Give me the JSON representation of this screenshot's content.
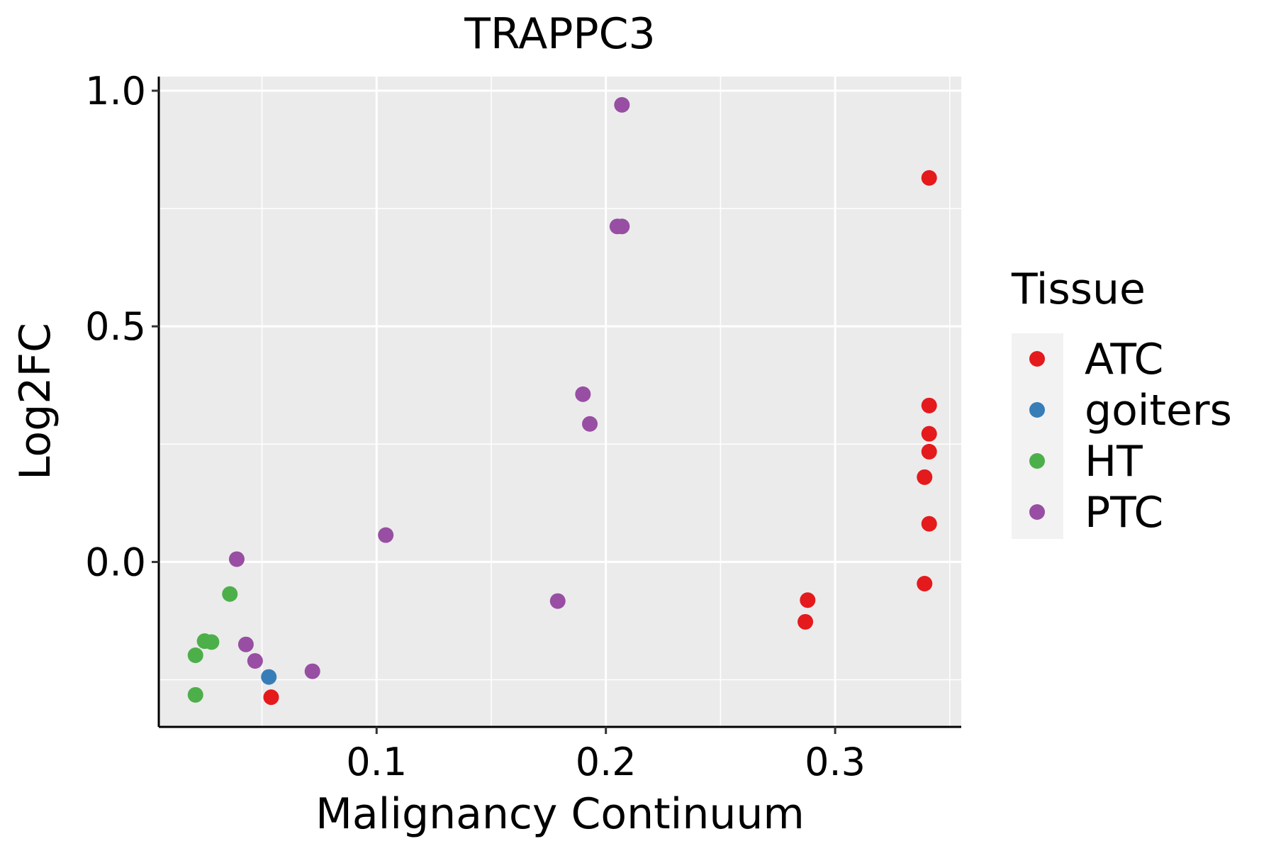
{
  "chart_data": {
    "type": "scatter",
    "title": "TRAPPC3",
    "xlabel": "Malignancy Continuum",
    "ylabel": "Log2FC",
    "xlim": [
      0.005,
      0.355
    ],
    "ylim": [
      -0.35,
      1.03
    ],
    "x_ticks": [
      0.1,
      0.2,
      0.3
    ],
    "x_tick_labels": [
      "0.1",
      "0.2",
      "0.3"
    ],
    "y_ticks": [
      0.0,
      0.5,
      1.0
    ],
    "y_tick_labels": [
      "0.0",
      "0.5",
      "1.0"
    ],
    "grid": true,
    "legend": {
      "title": "Tissue",
      "position": "right",
      "entries": [
        {
          "name": "ATC",
          "color": "#E41A1C"
        },
        {
          "name": "goiters",
          "color": "#377EB8"
        },
        {
          "name": "HT",
          "color": "#4DAF4A"
        },
        {
          "name": "PTC",
          "color": "#984EA3"
        }
      ]
    },
    "series": [
      {
        "name": "ATC",
        "color": "#E41A1C",
        "points": [
          {
            "x": 0.341,
            "y": 0.815
          },
          {
            "x": 0.341,
            "y": 0.332
          },
          {
            "x": 0.341,
            "y": 0.272
          },
          {
            "x": 0.341,
            "y": 0.234
          },
          {
            "x": 0.339,
            "y": 0.18
          },
          {
            "x": 0.341,
            "y": 0.081
          },
          {
            "x": 0.339,
            "y": -0.046
          },
          {
            "x": 0.288,
            "y": -0.081
          },
          {
            "x": 0.287,
            "y": -0.127
          },
          {
            "x": 0.054,
            "y": -0.287
          }
        ]
      },
      {
        "name": "goiters",
        "color": "#377EB8",
        "points": [
          {
            "x": 0.053,
            "y": -0.244
          }
        ]
      },
      {
        "name": "HT",
        "color": "#4DAF4A",
        "points": [
          {
            "x": 0.036,
            "y": -0.068
          },
          {
            "x": 0.025,
            "y": -0.168
          },
          {
            "x": 0.028,
            "y": -0.17
          },
          {
            "x": 0.021,
            "y": -0.198
          },
          {
            "x": 0.021,
            "y": -0.282
          }
        ]
      },
      {
        "name": "PTC",
        "color": "#984EA3",
        "points": [
          {
            "x": 0.207,
            "y": 0.97
          },
          {
            "x": 0.205,
            "y": 0.712
          },
          {
            "x": 0.207,
            "y": 0.712
          },
          {
            "x": 0.19,
            "y": 0.356
          },
          {
            "x": 0.193,
            "y": 0.293
          },
          {
            "x": 0.104,
            "y": 0.057
          },
          {
            "x": 0.039,
            "y": 0.006
          },
          {
            "x": 0.179,
            "y": -0.083
          },
          {
            "x": 0.043,
            "y": -0.175
          },
          {
            "x": 0.047,
            "y": -0.21
          },
          {
            "x": 0.072,
            "y": -0.232
          }
        ]
      }
    ]
  }
}
